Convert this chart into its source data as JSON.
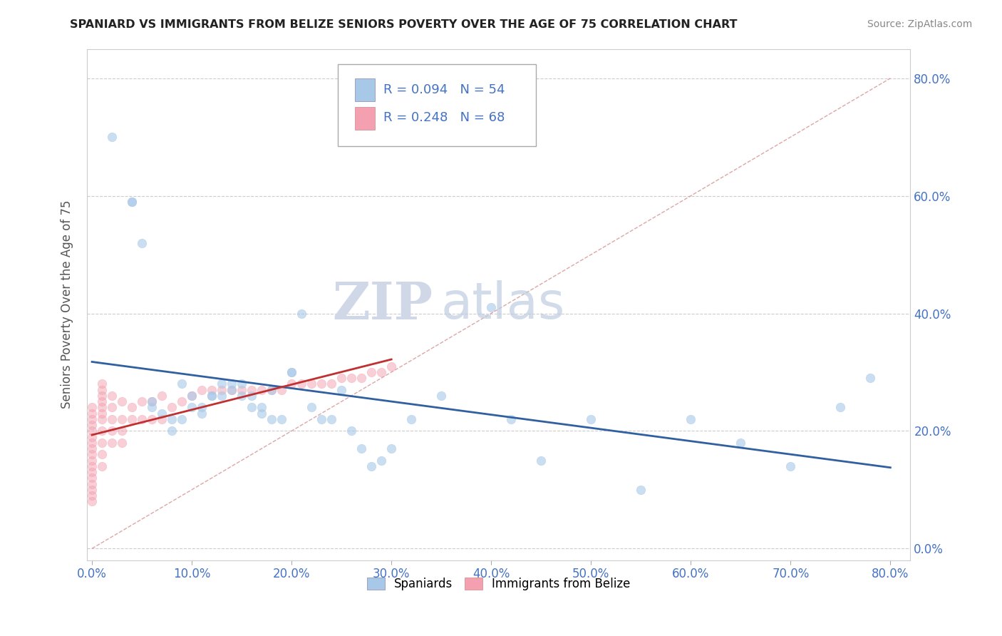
{
  "title": "SPANIARD VS IMMIGRANTS FROM BELIZE SENIORS POVERTY OVER THE AGE OF 75 CORRELATION CHART",
  "source": "Source: ZipAtlas.com",
  "ylabel_label": "Seniors Poverty Over the Age of 75",
  "legend_label1": "Spaniards",
  "legend_label2": "Immigrants from Belize",
  "R1": 0.094,
  "N1": 54,
  "R2": 0.248,
  "N2": 68,
  "color_blue": "#a8c8e8",
  "color_pink": "#f4a0b0",
  "color_line_blue": "#3060a0",
  "color_line_pink": "#c03030",
  "color_diag": "#e0a0a0",
  "watermark_zip": "ZIP",
  "watermark_atlas": "atlas",
  "blue_x": [
    0.02,
    0.04,
    0.04,
    0.05,
    0.06,
    0.06,
    0.07,
    0.08,
    0.08,
    0.09,
    0.09,
    0.1,
    0.1,
    0.11,
    0.11,
    0.12,
    0.12,
    0.13,
    0.13,
    0.14,
    0.14,
    0.15,
    0.15,
    0.16,
    0.16,
    0.17,
    0.17,
    0.18,
    0.18,
    0.19,
    0.2,
    0.2,
    0.21,
    0.22,
    0.23,
    0.24,
    0.25,
    0.26,
    0.27,
    0.28,
    0.29,
    0.3,
    0.32,
    0.35,
    0.4,
    0.42,
    0.45,
    0.5,
    0.55,
    0.6,
    0.65,
    0.7,
    0.75,
    0.78
  ],
  "blue_y": [
    0.7,
    0.59,
    0.59,
    0.52,
    0.25,
    0.24,
    0.23,
    0.22,
    0.2,
    0.28,
    0.22,
    0.26,
    0.24,
    0.24,
    0.23,
    0.26,
    0.26,
    0.28,
    0.26,
    0.28,
    0.27,
    0.28,
    0.26,
    0.26,
    0.24,
    0.24,
    0.23,
    0.27,
    0.22,
    0.22,
    0.3,
    0.3,
    0.4,
    0.24,
    0.22,
    0.22,
    0.27,
    0.2,
    0.17,
    0.14,
    0.15,
    0.17,
    0.22,
    0.26,
    0.41,
    0.22,
    0.15,
    0.22,
    0.1,
    0.22,
    0.18,
    0.14,
    0.24,
    0.29
  ],
  "pink_x": [
    0.0,
    0.0,
    0.0,
    0.0,
    0.0,
    0.0,
    0.0,
    0.0,
    0.0,
    0.0,
    0.0,
    0.0,
    0.0,
    0.0,
    0.0,
    0.0,
    0.0,
    0.01,
    0.01,
    0.01,
    0.01,
    0.01,
    0.01,
    0.01,
    0.01,
    0.01,
    0.01,
    0.01,
    0.02,
    0.02,
    0.02,
    0.02,
    0.02,
    0.03,
    0.03,
    0.03,
    0.03,
    0.04,
    0.04,
    0.05,
    0.05,
    0.06,
    0.06,
    0.07,
    0.07,
    0.08,
    0.09,
    0.1,
    0.11,
    0.12,
    0.13,
    0.14,
    0.15,
    0.16,
    0.17,
    0.18,
    0.19,
    0.2,
    0.21,
    0.22,
    0.23,
    0.24,
    0.25,
    0.26,
    0.27,
    0.28,
    0.29,
    0.3
  ],
  "pink_y": [
    0.24,
    0.23,
    0.22,
    0.21,
    0.2,
    0.19,
    0.18,
    0.17,
    0.16,
    0.15,
    0.14,
    0.13,
    0.12,
    0.11,
    0.1,
    0.09,
    0.08,
    0.28,
    0.27,
    0.26,
    0.25,
    0.24,
    0.23,
    0.22,
    0.2,
    0.18,
    0.16,
    0.14,
    0.26,
    0.24,
    0.22,
    0.2,
    0.18,
    0.25,
    0.22,
    0.2,
    0.18,
    0.24,
    0.22,
    0.25,
    0.22,
    0.25,
    0.22,
    0.26,
    0.22,
    0.24,
    0.25,
    0.26,
    0.27,
    0.27,
    0.27,
    0.27,
    0.27,
    0.27,
    0.27,
    0.27,
    0.27,
    0.28,
    0.28,
    0.28,
    0.28,
    0.28,
    0.29,
    0.29,
    0.29,
    0.3,
    0.3,
    0.31
  ]
}
